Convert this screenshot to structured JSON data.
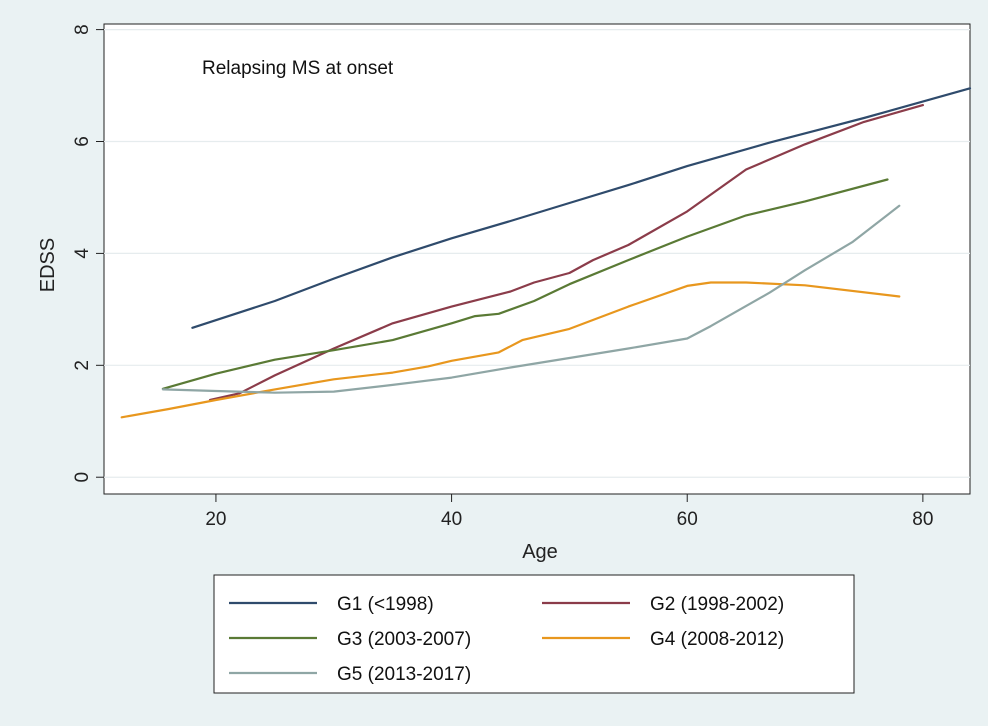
{
  "chart_data": {
    "type": "line",
    "title": "",
    "annotation": "Relapsing MS at onset",
    "xlabel": "Age",
    "ylabel": "EDSS",
    "xlim": [
      10.5,
      84
    ],
    "ylim": [
      -0.3,
      8.1
    ],
    "xticks": [
      20,
      40,
      60,
      80
    ],
    "yticks": [
      0,
      2,
      4,
      6,
      8
    ],
    "grid": "horizontal",
    "legend_position": "bottom",
    "series": [
      {
        "name": "G1 (<1998)",
        "color": "#2f4b6c",
        "x": [
          18,
          25,
          30,
          35,
          40,
          45,
          50,
          55,
          60,
          67,
          75,
          84
        ],
        "y": [
          2.67,
          3.15,
          3.55,
          3.93,
          4.27,
          4.58,
          4.9,
          5.22,
          5.56,
          5.98,
          6.42,
          6.95
        ]
      },
      {
        "name": "G2 (1998-2002)",
        "color": "#8b3c4a",
        "x": [
          19.5,
          22,
          25,
          30,
          35,
          40,
          45,
          47,
          50,
          52,
          55,
          60,
          65,
          70,
          75,
          80
        ],
        "y": [
          1.38,
          1.5,
          1.82,
          2.3,
          2.75,
          3.05,
          3.32,
          3.48,
          3.65,
          3.88,
          4.15,
          4.75,
          5.5,
          5.95,
          6.35,
          6.65
        ]
      },
      {
        "name": "G3 (2003-2007)",
        "color": "#5a7a35",
        "x": [
          15.5,
          20,
          25,
          30,
          35,
          40,
          42,
          44,
          47,
          50,
          55,
          60,
          65,
          70,
          77
        ],
        "y": [
          1.58,
          1.85,
          2.1,
          2.27,
          2.45,
          2.75,
          2.88,
          2.92,
          3.15,
          3.45,
          3.88,
          4.3,
          4.68,
          4.93,
          5.32
        ]
      },
      {
        "name": "G4 (2008-2012)",
        "color": "#e8971e",
        "x": [
          12,
          16,
          20,
          25,
          30,
          35,
          38,
          40,
          44,
          46,
          50,
          55,
          60,
          62,
          65,
          70,
          78
        ],
        "y": [
          1.07,
          1.22,
          1.38,
          1.57,
          1.75,
          1.87,
          1.98,
          2.08,
          2.23,
          2.45,
          2.65,
          3.05,
          3.42,
          3.48,
          3.48,
          3.43,
          3.23
        ]
      },
      {
        "name": "G5 (2013-2017)",
        "color": "#8fa6a5",
        "x": [
          15.5,
          20,
          25,
          30,
          35,
          40,
          45,
          50,
          55,
          60,
          62,
          67,
          70,
          74,
          78
        ],
        "y": [
          1.57,
          1.54,
          1.51,
          1.53,
          1.65,
          1.78,
          1.96,
          2.13,
          2.3,
          2.48,
          2.7,
          3.3,
          3.7,
          4.2,
          4.85
        ]
      }
    ]
  }
}
